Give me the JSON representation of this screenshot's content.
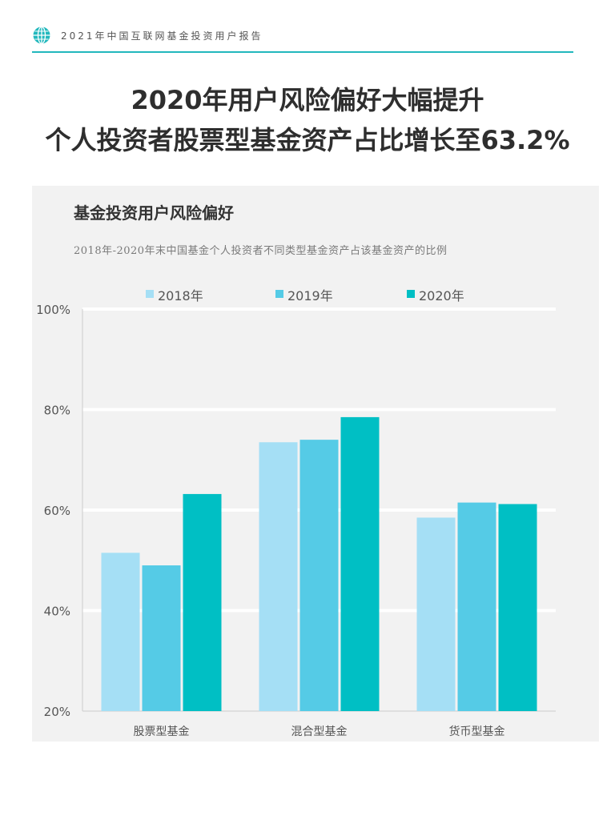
{
  "header": {
    "title": "2021年中国互联网基金投资用户报告",
    "icon": "globe-icon",
    "accent_color": "#22b8bd"
  },
  "headline": {
    "line1": "2020年用户风险偏好大幅提升",
    "line2": "个人投资者股票型基金资产占比增长至63.2%"
  },
  "panel": {
    "background": "#f2f2f2"
  },
  "chart_data": {
    "type": "bar",
    "title": "基金投资用户风险偏好",
    "subtitle": "2018年-2020年末中国基金个人投资者不同类型基金资产占该基金资产的比例",
    "categories": [
      "股票型基金",
      "混合型基金",
      "货币型基金"
    ],
    "series": [
      {
        "name": "2018年",
        "color": "#a5dff5",
        "values": [
          51.5,
          73.5,
          58.5
        ]
      },
      {
        "name": "2019年",
        "color": "#55cbe6",
        "values": [
          49.0,
          74.0,
          61.5
        ]
      },
      {
        "name": "2020年",
        "color": "#00bfc4",
        "values": [
          63.2,
          78.5,
          61.2
        ]
      }
    ],
    "ylim": [
      20,
      100
    ],
    "yticks": [
      "20%",
      "40%",
      "60%",
      "80%",
      "100%"
    ],
    "ytick_values": [
      20,
      40,
      60,
      80,
      100
    ],
    "grid": true,
    "legend_position": "top-center",
    "xlabel": "",
    "ylabel": ""
  }
}
